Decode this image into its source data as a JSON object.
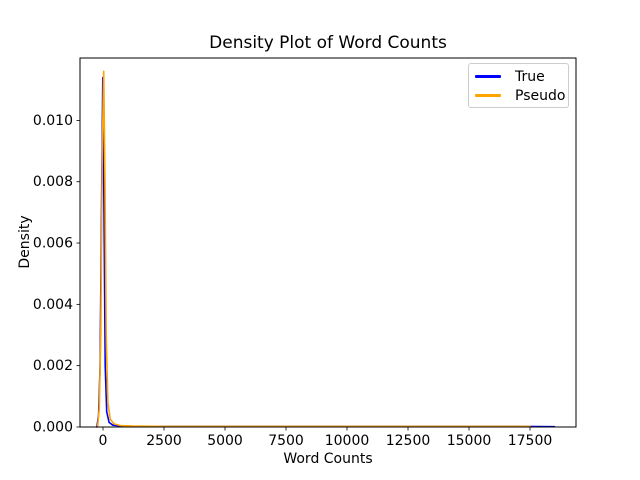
{
  "chart_data": {
    "type": "line",
    "title": "Density Plot of Word Counts",
    "xlabel": "Word Counts",
    "ylabel": "Density",
    "xlim": [
      -943,
      19385
    ],
    "ylim": [
      0,
      0.012035
    ],
    "x_ticks": [
      0,
      2500,
      5000,
      7500,
      10000,
      12500,
      15000,
      17500
    ],
    "x_tick_labels": [
      "0",
      "2500",
      "5000",
      "7500",
      "10000",
      "12500",
      "15000",
      "17500"
    ],
    "y_ticks": [
      0,
      0.002,
      0.004,
      0.006,
      0.008,
      0.01
    ],
    "y_tick_labels": [
      "0.000",
      "0.002",
      "0.004",
      "0.006",
      "0.008",
      "0.010"
    ],
    "grid": false,
    "background_color": "#ffffff",
    "axis_color": "#000000",
    "text_color": "#000000",
    "legend": {
      "position": "upper right",
      "border_color": "#cccccc"
    },
    "series": [
      {
        "name": "True",
        "color": "#0000ff",
        "peak_density": 0.0114,
        "peak_location": 0,
        "x": [
          -250,
          -180,
          -120,
          -60,
          -10,
          40,
          90,
          150,
          250,
          400,
          800,
          1500,
          3000,
          6000,
          10000,
          14000,
          17000,
          18500
        ],
        "y": [
          0.0,
          0.0004,
          0.002,
          0.007,
          0.0114,
          0.007,
          0.002,
          0.0005,
          0.00015,
          6e-05,
          3e-05,
          2e-05,
          2e-05,
          2e-05,
          2e-05,
          2e-05,
          2e-05,
          1e-05
        ]
      },
      {
        "name": "Pseudo",
        "color": "#ffa500",
        "peak_density": 0.0116,
        "peak_location": 30,
        "x": [
          -220,
          -150,
          -90,
          -30,
          30,
          80,
          130,
          200,
          300,
          450,
          700,
          1200,
          2500,
          5000,
          8000,
          12000,
          15000,
          17500
        ],
        "y": [
          0.0,
          0.0006,
          0.003,
          0.009,
          0.0116,
          0.008,
          0.003,
          0.0008,
          0.00025,
          0.0001,
          5e-05,
          3e-05,
          2e-05,
          2e-05,
          2e-05,
          2e-05,
          2e-05,
          2e-05
        ]
      }
    ]
  }
}
